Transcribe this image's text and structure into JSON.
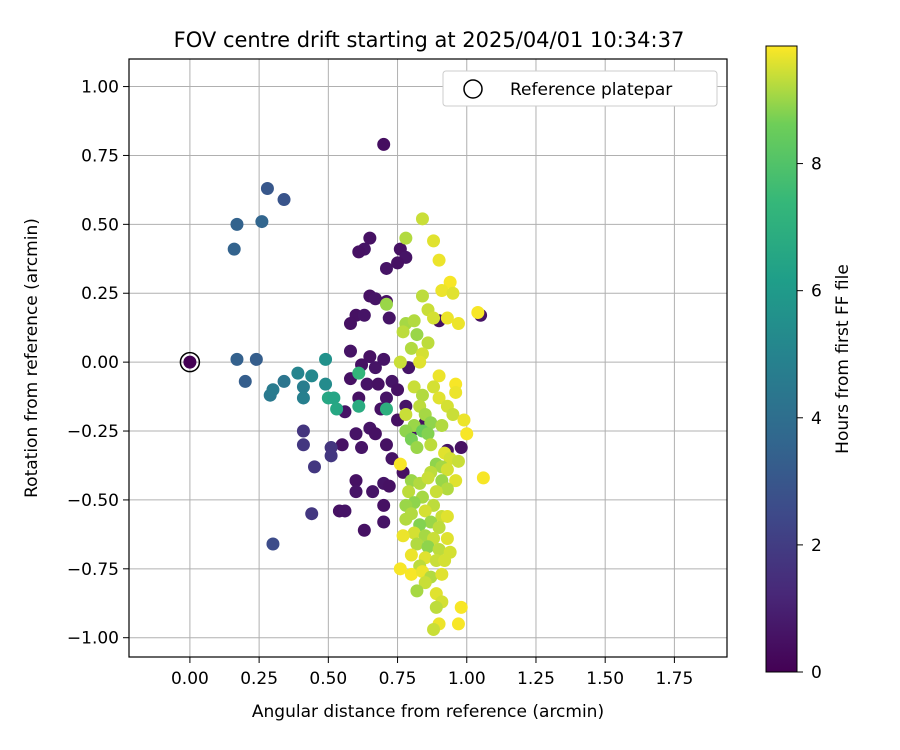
{
  "chart_data": {
    "type": "scatter",
    "title": "FOV centre drift starting at 2025/04/01 10:34:37",
    "xlabel": "Angular distance from reference (arcmin)",
    "ylabel": "Rotation from reference (arcmin)",
    "xlim": [
      -0.22,
      1.94
    ],
    "ylim": [
      -1.07,
      1.1
    ],
    "xticks": [
      "0.00",
      "0.25",
      "0.50",
      "0.75",
      "1.00",
      "1.25",
      "1.50",
      "1.75"
    ],
    "xtick_values": [
      0,
      0.25,
      0.5,
      0.75,
      1.0,
      1.25,
      1.5,
      1.75
    ],
    "yticks": [
      "1.00",
      "0.75",
      "0.50",
      "0.25",
      "0.00",
      "−0.25",
      "−0.50",
      "−0.75",
      "−1.00"
    ],
    "ytick_values": [
      1.0,
      0.75,
      0.5,
      0.25,
      0.0,
      -0.25,
      -0.5,
      -0.75,
      -1.0
    ],
    "grid": true,
    "legend": {
      "label": "Reference platepar",
      "placement": "top-right"
    },
    "reference_point": {
      "x": 0.0,
      "y": 0.0
    },
    "colorbar": {
      "label": "Hours from first FF file",
      "colormap": "viridis",
      "range": [
        0,
        9.85
      ],
      "ticks": [
        "0",
        "2",
        "4",
        "6",
        "8"
      ],
      "tick_values": [
        0,
        2,
        4,
        6,
        8
      ]
    },
    "points": [
      {
        "x": 0.0,
        "y": 0.0,
        "t": 0.0
      },
      {
        "x": 0.7,
        "y": 0.79,
        "t": 0.4
      },
      {
        "x": 0.65,
        "y": 0.45,
        "t": 0.5
      },
      {
        "x": 0.63,
        "y": 0.41,
        "t": 0.6
      },
      {
        "x": 0.61,
        "y": 0.4,
        "t": 0.5
      },
      {
        "x": 0.76,
        "y": 0.41,
        "t": 0.5
      },
      {
        "x": 0.78,
        "y": 0.38,
        "t": 0.6
      },
      {
        "x": 0.75,
        "y": 0.36,
        "t": 0.5
      },
      {
        "x": 0.71,
        "y": 0.34,
        "t": 0.6
      },
      {
        "x": 0.65,
        "y": 0.24,
        "t": 0.5
      },
      {
        "x": 0.67,
        "y": 0.23,
        "t": 0.6
      },
      {
        "x": 0.6,
        "y": 0.17,
        "t": 0.5
      },
      {
        "x": 0.63,
        "y": 0.17,
        "t": 0.6
      },
      {
        "x": 0.58,
        "y": 0.14,
        "t": 0.5
      },
      {
        "x": 0.72,
        "y": 0.16,
        "t": 0.6
      },
      {
        "x": 0.71,
        "y": 0.22,
        "t": 0.5
      },
      {
        "x": 0.58,
        "y": 0.04,
        "t": 0.6
      },
      {
        "x": 0.65,
        "y": 0.02,
        "t": 0.5
      },
      {
        "x": 0.7,
        "y": 0.01,
        "t": 0.6
      },
      {
        "x": 0.62,
        "y": -0.01,
        "t": 0.5
      },
      {
        "x": 0.67,
        "y": -0.02,
        "t": 0.6
      },
      {
        "x": 0.58,
        "y": -0.06,
        "t": 0.5
      },
      {
        "x": 0.64,
        "y": -0.08,
        "t": 0.6
      },
      {
        "x": 0.68,
        "y": -0.08,
        "t": 0.5
      },
      {
        "x": 0.73,
        "y": -0.07,
        "t": 0.6
      },
      {
        "x": 0.75,
        "y": -0.1,
        "t": 0.5
      },
      {
        "x": 0.71,
        "y": -0.13,
        "t": 0.6
      },
      {
        "x": 0.61,
        "y": -0.13,
        "t": 0.5
      },
      {
        "x": 0.56,
        "y": -0.18,
        "t": 0.6
      },
      {
        "x": 0.69,
        "y": -0.17,
        "t": 0.5
      },
      {
        "x": 0.78,
        "y": -0.16,
        "t": 0.6
      },
      {
        "x": 0.75,
        "y": -0.21,
        "t": 0.5
      },
      {
        "x": 0.8,
        "y": -0.25,
        "t": 0.6
      },
      {
        "x": 0.85,
        "y": -0.22,
        "t": 0.5
      },
      {
        "x": 0.65,
        "y": -0.24,
        "t": 0.6
      },
      {
        "x": 0.67,
        "y": -0.26,
        "t": 0.5
      },
      {
        "x": 0.6,
        "y": -0.26,
        "t": 0.6
      },
      {
        "x": 0.55,
        "y": -0.3,
        "t": 0.5
      },
      {
        "x": 0.62,
        "y": -0.31,
        "t": 0.6
      },
      {
        "x": 0.71,
        "y": -0.3,
        "t": 0.5
      },
      {
        "x": 0.73,
        "y": -0.35,
        "t": 0.6
      },
      {
        "x": 0.77,
        "y": -0.4,
        "t": 0.5
      },
      {
        "x": 0.7,
        "y": -0.44,
        "t": 0.6
      },
      {
        "x": 0.72,
        "y": -0.45,
        "t": 0.5
      },
      {
        "x": 0.66,
        "y": -0.47,
        "t": 0.6
      },
      {
        "x": 0.6,
        "y": -0.43,
        "t": 0.5
      },
      {
        "x": 0.6,
        "y": -0.47,
        "t": 0.6
      },
      {
        "x": 0.54,
        "y": -0.54,
        "t": 0.5
      },
      {
        "x": 0.56,
        "y": -0.54,
        "t": 0.6
      },
      {
        "x": 0.7,
        "y": -0.52,
        "t": 0.5
      },
      {
        "x": 0.7,
        "y": -0.58,
        "t": 0.6
      },
      {
        "x": 0.63,
        "y": -0.61,
        "t": 0.5
      },
      {
        "x": 0.93,
        "y": -0.32,
        "t": 0.6
      },
      {
        "x": 0.98,
        "y": -0.31,
        "t": 0.5
      },
      {
        "x": 1.05,
        "y": 0.17,
        "t": 0.6
      },
      {
        "x": 0.9,
        "y": 0.15,
        "t": 0.5
      },
      {
        "x": 0.79,
        "y": -0.02,
        "t": 0.6
      },
      {
        "x": 0.41,
        "y": -0.25,
        "t": 1.7
      },
      {
        "x": 0.41,
        "y": -0.3,
        "t": 1.8
      },
      {
        "x": 0.45,
        "y": -0.38,
        "t": 1.8
      },
      {
        "x": 0.51,
        "y": -0.31,
        "t": 1.7
      },
      {
        "x": 0.51,
        "y": -0.34,
        "t": 1.8
      },
      {
        "x": 0.44,
        "y": -0.55,
        "t": 1.8
      },
      {
        "x": 0.3,
        "y": -0.66,
        "t": 2.6
      },
      {
        "x": 0.2,
        "y": -0.07,
        "t": 3.3
      },
      {
        "x": 0.17,
        "y": 0.01,
        "t": 3.4
      },
      {
        "x": 0.24,
        "y": 0.01,
        "t": 3.3
      },
      {
        "x": 0.16,
        "y": 0.41,
        "t": 3.5
      },
      {
        "x": 0.17,
        "y": 0.5,
        "t": 3.5
      },
      {
        "x": 0.26,
        "y": 0.51,
        "t": 3.6
      },
      {
        "x": 0.28,
        "y": 0.63,
        "t": 3.0
      },
      {
        "x": 0.34,
        "y": 0.59,
        "t": 2.9
      },
      {
        "x": 0.34,
        "y": -0.07,
        "t": 4.3
      },
      {
        "x": 0.29,
        "y": -0.12,
        "t": 4.5
      },
      {
        "x": 0.3,
        "y": -0.1,
        "t": 4.6
      },
      {
        "x": 0.39,
        "y": -0.04,
        "t": 5.0
      },
      {
        "x": 0.41,
        "y": -0.09,
        "t": 4.7
      },
      {
        "x": 0.41,
        "y": -0.13,
        "t": 4.8
      },
      {
        "x": 0.44,
        "y": -0.05,
        "t": 5.2
      },
      {
        "x": 0.49,
        "y": -0.08,
        "t": 5.3
      },
      {
        "x": 0.49,
        "y": 0.01,
        "t": 5.6
      },
      {
        "x": 0.5,
        "y": -0.13,
        "t": 6.6
      },
      {
        "x": 0.52,
        "y": -0.13,
        "t": 6.5
      },
      {
        "x": 0.53,
        "y": -0.17,
        "t": 6.6
      },
      {
        "x": 0.61,
        "y": -0.16,
        "t": 6.8
      },
      {
        "x": 0.71,
        "y": -0.17,
        "t": 7.0
      },
      {
        "x": 0.61,
        "y": -0.04,
        "t": 7.3
      },
      {
        "x": 0.78,
        "y": 0.45,
        "t": 9.2
      },
      {
        "x": 0.84,
        "y": 0.52,
        "t": 9.4
      },
      {
        "x": 0.88,
        "y": 0.44,
        "t": 9.6
      },
      {
        "x": 0.9,
        "y": 0.37,
        "t": 9.7
      },
      {
        "x": 0.94,
        "y": 0.29,
        "t": 9.8
      },
      {
        "x": 0.91,
        "y": 0.26,
        "t": 9.7
      },
      {
        "x": 0.95,
        "y": 0.25,
        "t": 9.6
      },
      {
        "x": 0.84,
        "y": 0.24,
        "t": 9.3
      },
      {
        "x": 0.86,
        "y": 0.19,
        "t": 9.4
      },
      {
        "x": 0.88,
        "y": 0.16,
        "t": 9.5
      },
      {
        "x": 0.93,
        "y": 0.16,
        "t": 9.7
      },
      {
        "x": 0.97,
        "y": 0.14,
        "t": 9.7
      },
      {
        "x": 1.04,
        "y": 0.18,
        "t": 9.8
      },
      {
        "x": 0.71,
        "y": 0.21,
        "t": 9.0
      },
      {
        "x": 0.78,
        "y": 0.14,
        "t": 9.1
      },
      {
        "x": 0.81,
        "y": 0.15,
        "t": 9.2
      },
      {
        "x": 0.77,
        "y": 0.11,
        "t": 9.3
      },
      {
        "x": 0.82,
        "y": 0.1,
        "t": 9.0
      },
      {
        "x": 0.8,
        "y": 0.05,
        "t": 9.2
      },
      {
        "x": 0.86,
        "y": 0.07,
        "t": 9.3
      },
      {
        "x": 0.84,
        "y": 0.03,
        "t": 9.5
      },
      {
        "x": 0.76,
        "y": 0.0,
        "t": 9.4
      },
      {
        "x": 0.83,
        "y": 0.0,
        "t": 9.6
      },
      {
        "x": 0.9,
        "y": -0.05,
        "t": 9.7
      },
      {
        "x": 0.96,
        "y": -0.08,
        "t": 9.8
      },
      {
        "x": 0.96,
        "y": -0.11,
        "t": 9.7
      },
      {
        "x": 0.88,
        "y": -0.09,
        "t": 9.5
      },
      {
        "x": 0.81,
        "y": -0.09,
        "t": 9.4
      },
      {
        "x": 0.84,
        "y": -0.12,
        "t": 9.2
      },
      {
        "x": 0.9,
        "y": -0.13,
        "t": 9.6
      },
      {
        "x": 0.93,
        "y": -0.16,
        "t": 9.5
      },
      {
        "x": 0.95,
        "y": -0.19,
        "t": 9.4
      },
      {
        "x": 0.83,
        "y": -0.16,
        "t": 9.3
      },
      {
        "x": 0.85,
        "y": -0.19,
        "t": 9.1
      },
      {
        "x": 0.78,
        "y": -0.19,
        "t": 9.4
      },
      {
        "x": 0.81,
        "y": -0.23,
        "t": 9.0
      },
      {
        "x": 0.87,
        "y": -0.22,
        "t": 8.9
      },
      {
        "x": 0.91,
        "y": -0.23,
        "t": 9.2
      },
      {
        "x": 0.99,
        "y": -0.21,
        "t": 9.7
      },
      {
        "x": 1.0,
        "y": -0.26,
        "t": 9.8
      },
      {
        "x": 0.78,
        "y": -0.25,
        "t": 8.9
      },
      {
        "x": 0.84,
        "y": -0.25,
        "t": 8.5
      },
      {
        "x": 0.86,
        "y": -0.26,
        "t": 8.8
      },
      {
        "x": 0.8,
        "y": -0.28,
        "t": 8.7
      },
      {
        "x": 0.82,
        "y": -0.31,
        "t": 9.0
      },
      {
        "x": 0.87,
        "y": -0.3,
        "t": 9.3
      },
      {
        "x": 0.92,
        "y": -0.33,
        "t": 9.6
      },
      {
        "x": 0.94,
        "y": -0.35,
        "t": 9.5
      },
      {
        "x": 0.97,
        "y": -0.36,
        "t": 9.4
      },
      {
        "x": 0.76,
        "y": -0.37,
        "t": 9.8
      },
      {
        "x": 0.89,
        "y": -0.37,
        "t": 8.9
      },
      {
        "x": 0.91,
        "y": -0.38,
        "t": 9.1
      },
      {
        "x": 0.87,
        "y": -0.4,
        "t": 9.3
      },
      {
        "x": 0.93,
        "y": -0.39,
        "t": 9.5
      },
      {
        "x": 0.8,
        "y": -0.43,
        "t": 9.0
      },
      {
        "x": 0.83,
        "y": -0.44,
        "t": 9.2
      },
      {
        "x": 0.86,
        "y": -0.42,
        "t": 9.4
      },
      {
        "x": 0.91,
        "y": -0.43,
        "t": 9.0
      },
      {
        "x": 0.96,
        "y": -0.43,
        "t": 9.6
      },
      {
        "x": 1.06,
        "y": -0.42,
        "t": 9.8
      },
      {
        "x": 0.93,
        "y": -0.46,
        "t": 9.2
      },
      {
        "x": 0.89,
        "y": -0.47,
        "t": 9.4
      },
      {
        "x": 0.79,
        "y": -0.47,
        "t": 9.3
      },
      {
        "x": 0.84,
        "y": -0.49,
        "t": 9.1
      },
      {
        "x": 0.81,
        "y": -0.51,
        "t": 8.9
      },
      {
        "x": 0.78,
        "y": -0.52,
        "t": 9.0
      },
      {
        "x": 0.88,
        "y": -0.52,
        "t": 9.3
      },
      {
        "x": 0.85,
        "y": -0.54,
        "t": 9.5
      },
      {
        "x": 0.8,
        "y": -0.55,
        "t": 9.2
      },
      {
        "x": 0.91,
        "y": -0.56,
        "t": 9.4
      },
      {
        "x": 0.93,
        "y": -0.56,
        "t": 9.6
      },
      {
        "x": 0.78,
        "y": -0.57,
        "t": 9.2
      },
      {
        "x": 0.87,
        "y": -0.58,
        "t": 9.0
      },
      {
        "x": 0.83,
        "y": -0.59,
        "t": 8.8
      },
      {
        "x": 0.9,
        "y": -0.6,
        "t": 9.3
      },
      {
        "x": 0.81,
        "y": -0.62,
        "t": 9.5
      },
      {
        "x": 0.77,
        "y": -0.63,
        "t": 9.7
      },
      {
        "x": 0.85,
        "y": -0.63,
        "t": 9.1
      },
      {
        "x": 0.88,
        "y": -0.64,
        "t": 9.4
      },
      {
        "x": 0.93,
        "y": -0.64,
        "t": 9.6
      },
      {
        "x": 0.82,
        "y": -0.66,
        "t": 9.2
      },
      {
        "x": 0.86,
        "y": -0.67,
        "t": 8.9
      },
      {
        "x": 0.9,
        "y": -0.68,
        "t": 9.3
      },
      {
        "x": 0.94,
        "y": -0.69,
        "t": 9.5
      },
      {
        "x": 0.8,
        "y": -0.7,
        "t": 9.7
      },
      {
        "x": 0.85,
        "y": -0.71,
        "t": 9.6
      },
      {
        "x": 0.89,
        "y": -0.72,
        "t": 9.4
      },
      {
        "x": 0.92,
        "y": -0.72,
        "t": 9.5
      },
      {
        "x": 0.83,
        "y": -0.74,
        "t": 9.3
      },
      {
        "x": 0.76,
        "y": -0.75,
        "t": 9.8
      },
      {
        "x": 0.8,
        "y": -0.77,
        "t": 9.8
      },
      {
        "x": 0.84,
        "y": -0.76,
        "t": 9.7
      },
      {
        "x": 0.87,
        "y": -0.78,
        "t": 9.2
      },
      {
        "x": 0.91,
        "y": -0.77,
        "t": 9.6
      },
      {
        "x": 0.85,
        "y": -0.8,
        "t": 9.4
      },
      {
        "x": 0.82,
        "y": -0.83,
        "t": 9.1
      },
      {
        "x": 0.89,
        "y": -0.84,
        "t": 9.6
      },
      {
        "x": 0.91,
        "y": -0.87,
        "t": 9.5
      },
      {
        "x": 0.89,
        "y": -0.89,
        "t": 9.3
      },
      {
        "x": 0.98,
        "y": -0.89,
        "t": 9.8
      },
      {
        "x": 0.9,
        "y": -0.95,
        "t": 9.7
      },
      {
        "x": 0.88,
        "y": -0.97,
        "t": 9.4
      },
      {
        "x": 0.97,
        "y": -0.95,
        "t": 9.8
      }
    ]
  }
}
